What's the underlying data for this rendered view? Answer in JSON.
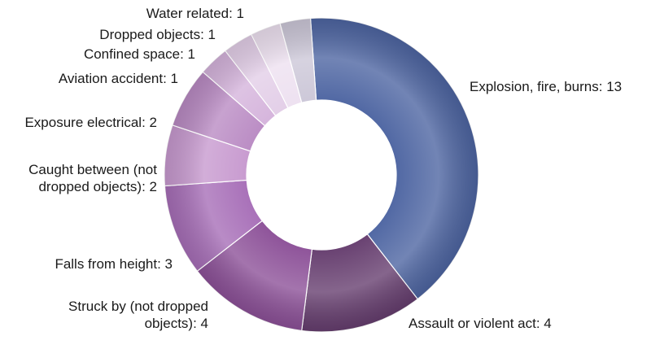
{
  "chart_data": {
    "type": "pie",
    "donut": true,
    "categories": [
      "Explosion, fire, burns",
      "Assault or violent act",
      "Struck by (not dropped objects)",
      "Falls from height",
      "Caught between (not dropped objects)",
      "Exposure electrical",
      "Aviation accident",
      "Confined space",
      "Dropped objects",
      "Water related"
    ],
    "values": [
      13,
      4,
      4,
      3,
      2,
      2,
      1,
      1,
      1,
      1
    ],
    "labels": [
      [
        "Explosion, fire, burns: 13"
      ],
      [
        "Assault or violent act: 4"
      ],
      [
        "Struck by (not dropped",
        "objects): 4"
      ],
      [
        "Falls from height: 3"
      ],
      [
        "Caught between (not",
        "dropped objects): 2"
      ],
      [
        "Exposure electrical: 2"
      ],
      [
        "Aviation accident: 1"
      ],
      [
        "Confined space: 1"
      ],
      [
        "Dropped objects: 1"
      ],
      [
        "Water related: 1"
      ]
    ],
    "colors": [
      "#4a62a0",
      "#633a6c",
      "#8a4d96",
      "#a56bb6",
      "#c697ce",
      "#b888c2",
      "#d4b2db",
      "#e2cde7",
      "#ede0f0",
      "#cbc6d7"
    ],
    "legend": "none"
  }
}
